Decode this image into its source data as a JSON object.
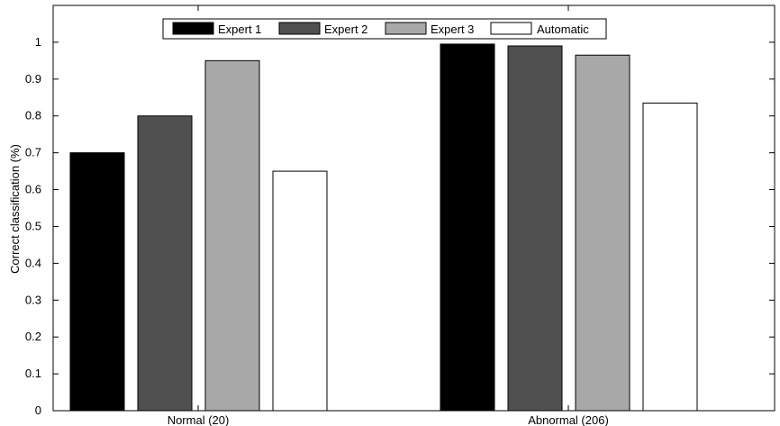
{
  "chart_data": {
    "type": "bar",
    "title": "",
    "xlabel": "",
    "ylabel": "Correct classification (%)",
    "categories": [
      "Normal (20)",
      "Abnormal (206)"
    ],
    "series": [
      {
        "name": "Expert 1",
        "values": [
          0.7,
          0.995
        ],
        "color": "#000000"
      },
      {
        "name": "Expert 2",
        "values": [
          0.8,
          0.99
        ],
        "color": "#505050"
      },
      {
        "name": "Expert 3",
        "values": [
          0.95,
          0.965
        ],
        "color": "#a8a8a8"
      },
      {
        "name": "Automatic",
        "values": [
          0.65,
          0.835
        ],
        "color": "#ffffff"
      }
    ],
    "ylim": [
      0,
      1.1
    ],
    "yticks": [
      0,
      0.1,
      0.2,
      0.3,
      0.4,
      0.5,
      0.6,
      0.7,
      0.8,
      0.9,
      1
    ],
    "ytick_labels": [
      "0",
      "0.1",
      "0.2",
      "0.3",
      "0.4",
      "0.5",
      "0.6",
      "0.7",
      "0.8",
      "0.9",
      "1"
    ],
    "grid": false,
    "legend_position": "top-center"
  }
}
